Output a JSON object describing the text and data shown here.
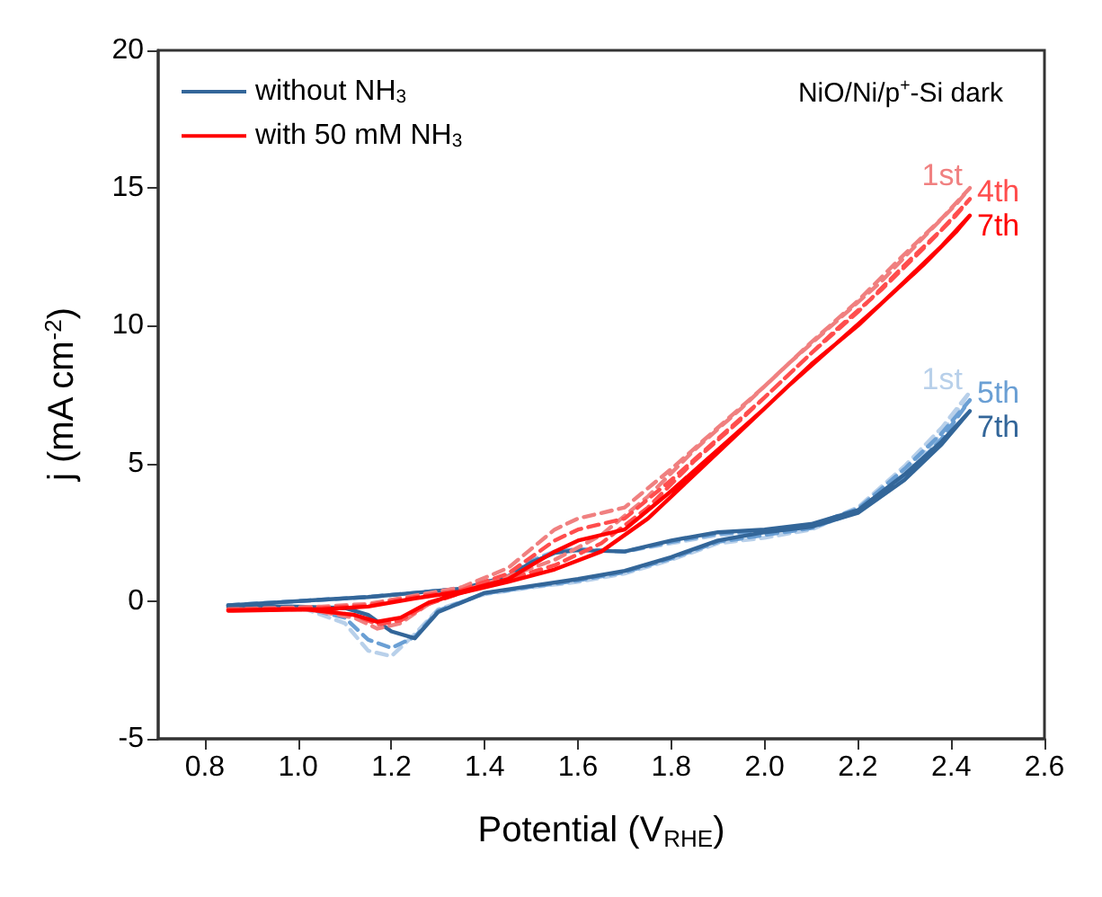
{
  "chart_data": {
    "type": "line",
    "title": "NiO/Ni/p$^{+}$-Si dark",
    "xlabel": "Potential (V$_{RHE}$)",
    "ylabel": "j (mA cm$^{-2}$)",
    "xlim": [
      0.7,
      2.6
    ],
    "xticks": [
      0.8,
      {
        "value": 1,
        "label": "1.0"
      },
      1.2,
      1.4,
      1.6,
      1.8,
      {
        "value": 2,
        "label": "2.0"
      },
      2.2,
      2.4,
      2.6
    ],
    "ylim": [
      -5,
      20
    ],
    "yticks": [
      -5,
      0,
      5,
      10,
      15,
      20
    ],
    "legend": "top left",
    "grid": false,
    "marker": "none",
    "series": [
      {
        "color": "#b8d0ea",
        "line_style": "dashed",
        "x": [
          0.85,
          0.95,
          1.05,
          1.15,
          1.25,
          1.35,
          1.45,
          1.5,
          1.55,
          1.6,
          1.7,
          1.8,
          1.9,
          2.0,
          2.1,
          2.2,
          2.3,
          2.38,
          2.44,
          2.38,
          2.3,
          2.2,
          2.1,
          2.0,
          1.9,
          1.8,
          1.7,
          1.6,
          1.5,
          1.4,
          1.3,
          1.25,
          1.2,
          1.15,
          1.1,
          1.0,
          0.85
        ],
        "values": [
          -0.15,
          -0.05,
          0.05,
          0.15,
          0.3,
          0.45,
          0.95,
          1.5,
          1.8,
          1.9,
          1.8,
          2.1,
          2.4,
          2.5,
          2.7,
          3.4,
          4.9,
          6.3,
          7.6,
          6.1,
          4.6,
          3.3,
          2.6,
          2.3,
          2.1,
          1.5,
          1.0,
          0.7,
          0.5,
          0.25,
          -0.3,
          -1.2,
          -2.0,
          -1.8,
          -0.8,
          -0.2,
          -0.2
        ]
      },
      {
        "color": "#6a9fd4",
        "line_style": "dashed",
        "x": [
          0.85,
          0.95,
          1.05,
          1.15,
          1.25,
          1.35,
          1.45,
          1.5,
          1.55,
          1.6,
          1.7,
          1.8,
          1.9,
          2.0,
          2.1,
          2.2,
          2.3,
          2.38,
          2.44,
          2.38,
          2.3,
          2.2,
          2.1,
          2.0,
          1.9,
          1.8,
          1.7,
          1.6,
          1.5,
          1.4,
          1.3,
          1.25,
          1.2,
          1.15,
          1.1,
          1.0,
          0.85
        ],
        "values": [
          -0.15,
          -0.05,
          0.05,
          0.15,
          0.3,
          0.45,
          0.9,
          1.45,
          1.78,
          1.88,
          1.8,
          2.15,
          2.45,
          2.55,
          2.75,
          3.35,
          4.8,
          6.1,
          7.3,
          5.9,
          4.5,
          3.25,
          2.65,
          2.4,
          2.15,
          1.55,
          1.05,
          0.75,
          0.52,
          0.28,
          -0.35,
          -1.3,
          -1.7,
          -1.4,
          -0.6,
          -0.2,
          -0.2
        ]
      },
      {
        "name": "without NH$_{3}$",
        "color": "#336699",
        "line_style": "solid",
        "x": [
          0.85,
          0.95,
          1.05,
          1.15,
          1.25,
          1.35,
          1.45,
          1.5,
          1.55,
          1.6,
          1.7,
          1.8,
          1.9,
          2.0,
          2.1,
          2.2,
          2.3,
          2.38,
          2.44,
          2.38,
          2.3,
          2.2,
          2.1,
          2.0,
          1.9,
          1.8,
          1.7,
          1.6,
          1.5,
          1.4,
          1.3,
          1.25,
          1.2,
          1.15,
          1.1,
          1.0,
          0.85
        ],
        "values": [
          -0.15,
          -0.05,
          0.05,
          0.15,
          0.3,
          0.45,
          0.9,
          1.4,
          1.75,
          1.85,
          1.8,
          2.2,
          2.5,
          2.6,
          2.8,
          3.3,
          4.6,
          5.8,
          6.9,
          5.7,
          4.4,
          3.2,
          2.7,
          2.5,
          2.2,
          1.6,
          1.1,
          0.8,
          0.55,
          0.3,
          -0.4,
          -1.35,
          -1.1,
          -0.5,
          -0.25,
          -0.2,
          -0.2
        ]
      },
      {
        "color": "#f08080",
        "line_style": "dashed",
        "x": [
          0.85,
          0.95,
          1.05,
          1.15,
          1.25,
          1.35,
          1.45,
          1.5,
          1.55,
          1.6,
          1.7,
          1.8,
          1.9,
          2.0,
          2.1,
          2.2,
          2.3,
          2.38,
          2.44,
          2.41,
          2.34,
          2.25,
          2.15,
          2.05,
          1.95,
          1.85,
          1.75,
          1.65,
          1.55,
          1.45,
          1.35,
          1.28,
          1.22,
          1.17,
          1.12,
          1.02,
          0.86
        ],
        "values": [
          -0.3,
          -0.25,
          -0.2,
          -0.1,
          0.2,
          0.5,
          1.2,
          1.9,
          2.6,
          3.0,
          3.4,
          4.8,
          6.3,
          7.8,
          9.4,
          10.9,
          12.6,
          13.9,
          15.0,
          14.4,
          13.2,
          11.6,
          10.1,
          8.6,
          7.0,
          5.5,
          3.8,
          2.4,
          1.5,
          0.9,
          0.35,
          -0.1,
          -0.8,
          -1.0,
          -0.6,
          -0.3,
          -0.3
        ]
      },
      {
        "color": "#ff4d4d",
        "line_style": "dashed",
        "x": [
          0.85,
          0.95,
          1.05,
          1.15,
          1.25,
          1.35,
          1.45,
          1.5,
          1.55,
          1.6,
          1.7,
          1.8,
          1.9,
          2.0,
          2.1,
          2.2,
          2.3,
          2.38,
          2.44,
          2.41,
          2.34,
          2.25,
          2.15,
          2.05,
          1.95,
          1.85,
          1.75,
          1.65,
          1.55,
          1.45,
          1.35,
          1.28,
          1.22,
          1.17,
          1.12,
          1.02,
          0.86
        ],
        "values": [
          -0.3,
          -0.28,
          -0.25,
          -0.15,
          0.15,
          0.4,
          1.0,
          1.6,
          2.2,
          2.6,
          3.0,
          4.4,
          5.9,
          7.4,
          9.0,
          10.5,
          12.2,
          13.5,
          14.6,
          14.0,
          12.8,
          11.3,
          9.8,
          8.2,
          6.6,
          5.1,
          3.4,
          2.1,
          1.3,
          0.8,
          0.3,
          -0.1,
          -0.7,
          -0.85,
          -0.5,
          -0.3,
          -0.3
        ]
      },
      {
        "name": "with 50 mM NH$_{3}$",
        "color": "#ff0000",
        "line_style": "solid",
        "x": [
          0.85,
          0.95,
          1.05,
          1.15,
          1.25,
          1.35,
          1.45,
          1.5,
          1.55,
          1.6,
          1.7,
          1.8,
          1.9,
          2.0,
          2.1,
          2.2,
          2.3,
          2.38,
          2.44,
          2.41,
          2.34,
          2.25,
          2.15,
          2.05,
          1.95,
          1.85,
          1.75,
          1.65,
          1.55,
          1.45,
          1.35,
          1.28,
          1.22,
          1.17,
          1.12,
          1.02,
          0.86
        ],
        "values": [
          -0.35,
          -0.3,
          -0.3,
          -0.2,
          0.1,
          0.35,
          0.8,
          1.3,
          1.8,
          2.2,
          2.6,
          4.0,
          5.5,
          7.0,
          8.6,
          10.0,
          11.6,
          12.9,
          14.0,
          13.4,
          12.2,
          10.8,
          9.3,
          7.8,
          6.2,
          4.6,
          3.0,
          1.8,
          1.15,
          0.7,
          0.3,
          -0.05,
          -0.6,
          -0.75,
          -0.5,
          -0.3,
          -0.35
        ]
      }
    ],
    "annotations": [
      "1st",
      "5th",
      "7th",
      "1st",
      "4th",
      "7th"
    ]
  }
}
